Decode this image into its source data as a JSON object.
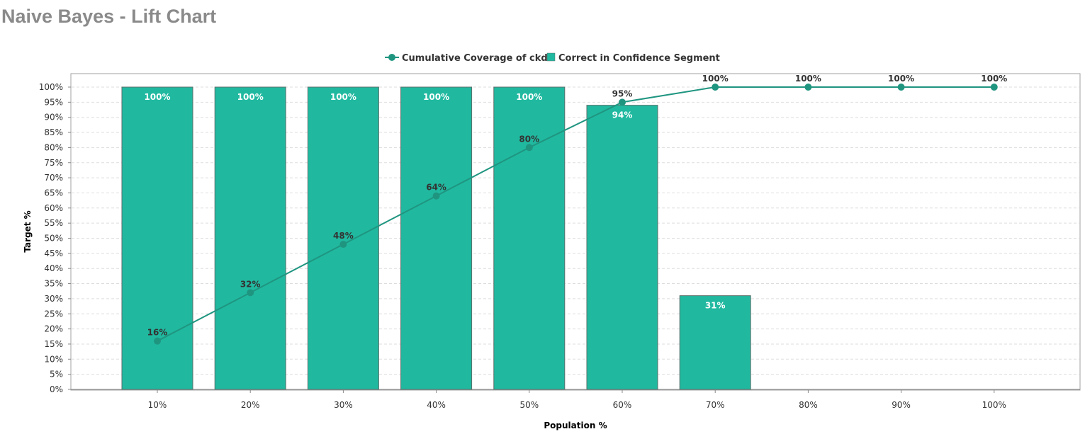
{
  "title": "Naive Bayes - Lift Chart",
  "colors": {
    "bar_fill": "#20b9a0",
    "bar_stroke": "#5a6e6a",
    "line": "#1f9580",
    "title": "#8a8a8a",
    "grid": "#dddddd"
  },
  "chart_data": {
    "type": "bar",
    "xlabel": "Population %",
    "ylabel": "Target %",
    "ylim": [
      0,
      100
    ],
    "y_ticks": [
      0,
      5,
      10,
      15,
      20,
      25,
      30,
      35,
      40,
      45,
      50,
      55,
      60,
      65,
      70,
      75,
      80,
      85,
      90,
      95,
      100
    ],
    "y_tick_suffix": "%",
    "categories": [
      "10%",
      "20%",
      "30%",
      "40%",
      "50%",
      "60%",
      "70%",
      "80%",
      "90%",
      "100%"
    ],
    "grid": true,
    "legend_position": "top-center",
    "series": [
      {
        "name": "Cumulative Coverage of ckd",
        "type": "line",
        "values": [
          16,
          32,
          48,
          64,
          80,
          95,
          100,
          100,
          100,
          100
        ],
        "labels": [
          "16%",
          "32%",
          "48%",
          "64%",
          "80%",
          "95%",
          "100%",
          "100%",
          "100%",
          "100%"
        ]
      },
      {
        "name": "Correct in Confidence Segment",
        "type": "bar",
        "values": [
          100,
          100,
          100,
          100,
          100,
          94,
          31,
          null,
          null,
          null
        ],
        "labels": [
          "100%",
          "100%",
          "100%",
          "100%",
          "100%",
          "94%",
          "31%",
          null,
          null,
          null
        ]
      }
    ]
  }
}
